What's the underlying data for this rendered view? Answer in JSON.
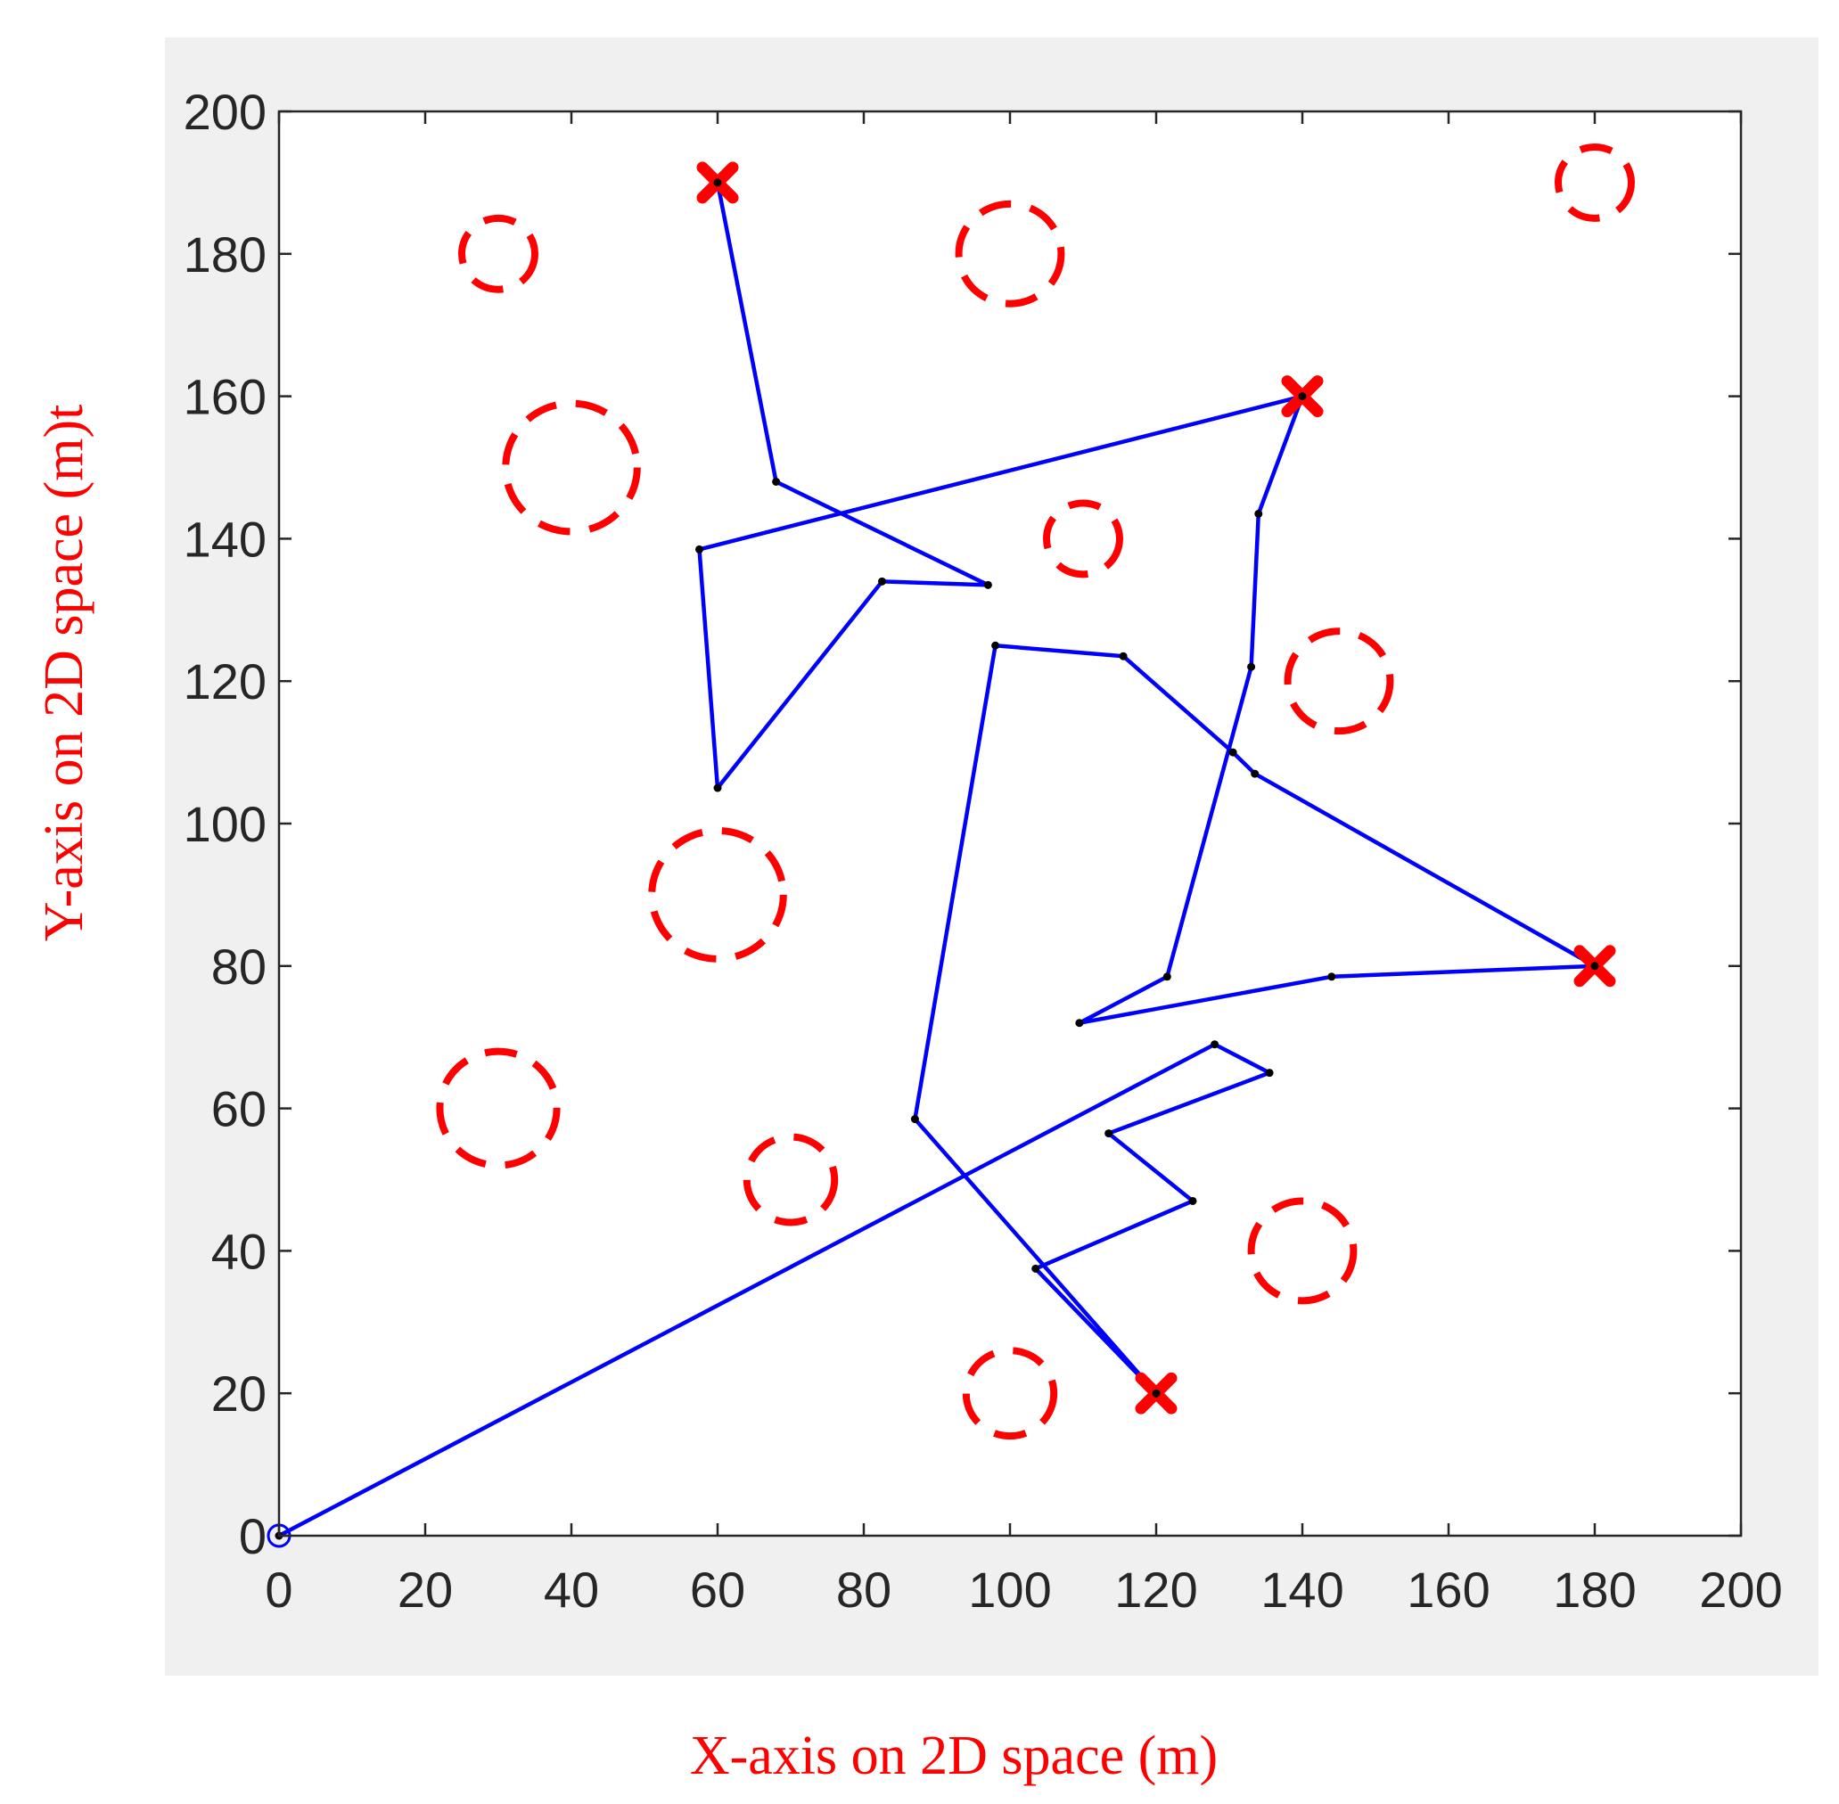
{
  "chart_data": {
    "type": "scatter",
    "xlabel": "X-axis on 2D space (m)",
    "ylabel": "Y-axis on 2D space (m)t",
    "xlim": [
      0,
      200
    ],
    "ylim": [
      0,
      200
    ],
    "x_ticks": [
      0,
      20,
      40,
      60,
      80,
      100,
      120,
      140,
      160,
      180,
      200
    ],
    "y_ticks": [
      0,
      20,
      40,
      60,
      80,
      100,
      120,
      140,
      160,
      180,
      200
    ],
    "x_tick_labels": [
      "0",
      "20",
      "40",
      "60",
      "80",
      "100",
      "120",
      "140",
      "160",
      "180",
      "200"
    ],
    "y_tick_labels": [
      "0",
      "20",
      "40",
      "60",
      "80",
      "100",
      "120",
      "140",
      "160",
      "180",
      "200"
    ],
    "grid": false,
    "origin_marker": {
      "x": 0,
      "y": 0
    },
    "path": [
      [
        0,
        0
      ],
      [
        128,
        69
      ],
      [
        135.5,
        65
      ],
      [
        113.5,
        56.5
      ],
      [
        125,
        47
      ],
      [
        103.5,
        37.5
      ],
      [
        120,
        20
      ],
      [
        87,
        58.5
      ],
      [
        98,
        125
      ],
      [
        115.5,
        123.5
      ],
      [
        130.5,
        110
      ],
      [
        133.5,
        107
      ],
      [
        180,
        80
      ],
      [
        144,
        78.5
      ],
      [
        109.5,
        72
      ],
      [
        121.5,
        78.5
      ],
      [
        133,
        122
      ],
      [
        134,
        143.5
      ],
      [
        140,
        160
      ],
      [
        57.5,
        138.5
      ],
      [
        60,
        105
      ],
      [
        82.5,
        134
      ],
      [
        97,
        133.5
      ],
      [
        68,
        148
      ],
      [
        60,
        190
      ]
    ],
    "targets": [
      {
        "x": 60,
        "y": 190
      },
      {
        "x": 140,
        "y": 160
      },
      {
        "x": 180,
        "y": 80
      },
      {
        "x": 120,
        "y": 20
      }
    ],
    "obstacles": [
      {
        "x": 30,
        "y": 180,
        "r": 5
      },
      {
        "x": 100,
        "y": 180,
        "r": 7
      },
      {
        "x": 180,
        "y": 190,
        "r": 5
      },
      {
        "x": 40,
        "y": 150,
        "r": 9
      },
      {
        "x": 110,
        "y": 140,
        "r": 5
      },
      {
        "x": 145,
        "y": 120,
        "r": 7
      },
      {
        "x": 60,
        "y": 90,
        "r": 9
      },
      {
        "x": 30,
        "y": 60,
        "r": 8
      },
      {
        "x": 70,
        "y": 50,
        "r": 6
      },
      {
        "x": 140,
        "y": 40,
        "r": 7
      },
      {
        "x": 100,
        "y": 20,
        "r": 6
      }
    ],
    "colors": {
      "path": "#0000ff",
      "target": "#ff0000",
      "obstacle": "#ff0000",
      "waypoint": "#000000",
      "axis_title": "#ff0000",
      "figure_background": "#f0f0f0",
      "plot_background": "#ffffff"
    }
  }
}
